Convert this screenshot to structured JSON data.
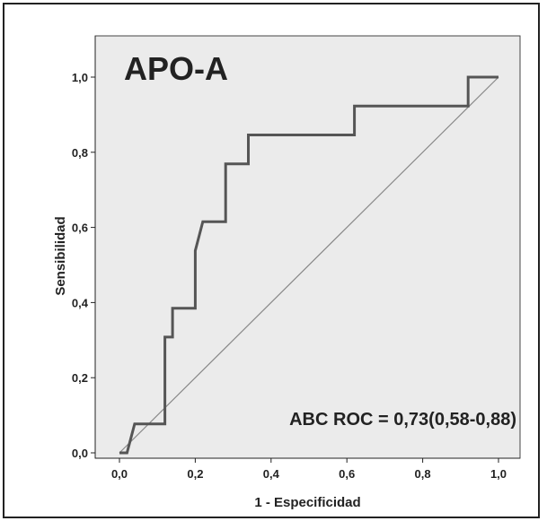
{
  "chart_data": {
    "type": "line",
    "title": "APO-A",
    "xlabel": "1 - Especificidad",
    "ylabel": "Sensibilidad",
    "xlim": [
      0,
      1
    ],
    "ylim": [
      0,
      1
    ],
    "x_ticks": [
      "0,0",
      "0,2",
      "0,4",
      "0,6",
      "0,8",
      "1,0"
    ],
    "y_ticks": [
      "0,0",
      "0,2",
      "0,4",
      "0,6",
      "0,8",
      "1,0"
    ],
    "annotation": "ABC ROC = 0,73(0,58-0,88)",
    "grid": false,
    "legend": "none",
    "colors": {
      "plot_background": "#ebebeb",
      "roc_curve": "#555555",
      "reference_line": "#888888"
    },
    "series": [
      {
        "x": [
          0.0,
          0.02,
          0.04,
          0.12,
          0.12,
          0.14,
          0.14,
          0.2,
          0.2,
          0.22,
          0.28,
          0.28,
          0.34,
          0.34,
          0.62,
          0.62,
          0.92,
          0.92,
          1.0
        ],
        "y": [
          0.0,
          0.0,
          0.077,
          0.077,
          0.308,
          0.308,
          0.385,
          0.385,
          0.538,
          0.615,
          0.615,
          0.769,
          0.769,
          0.846,
          0.846,
          0.923,
          0.923,
          1.0,
          1.0
        ]
      },
      {
        "x": [
          0.0,
          1.0
        ],
        "y": [
          0.0,
          1.0
        ]
      }
    ]
  }
}
